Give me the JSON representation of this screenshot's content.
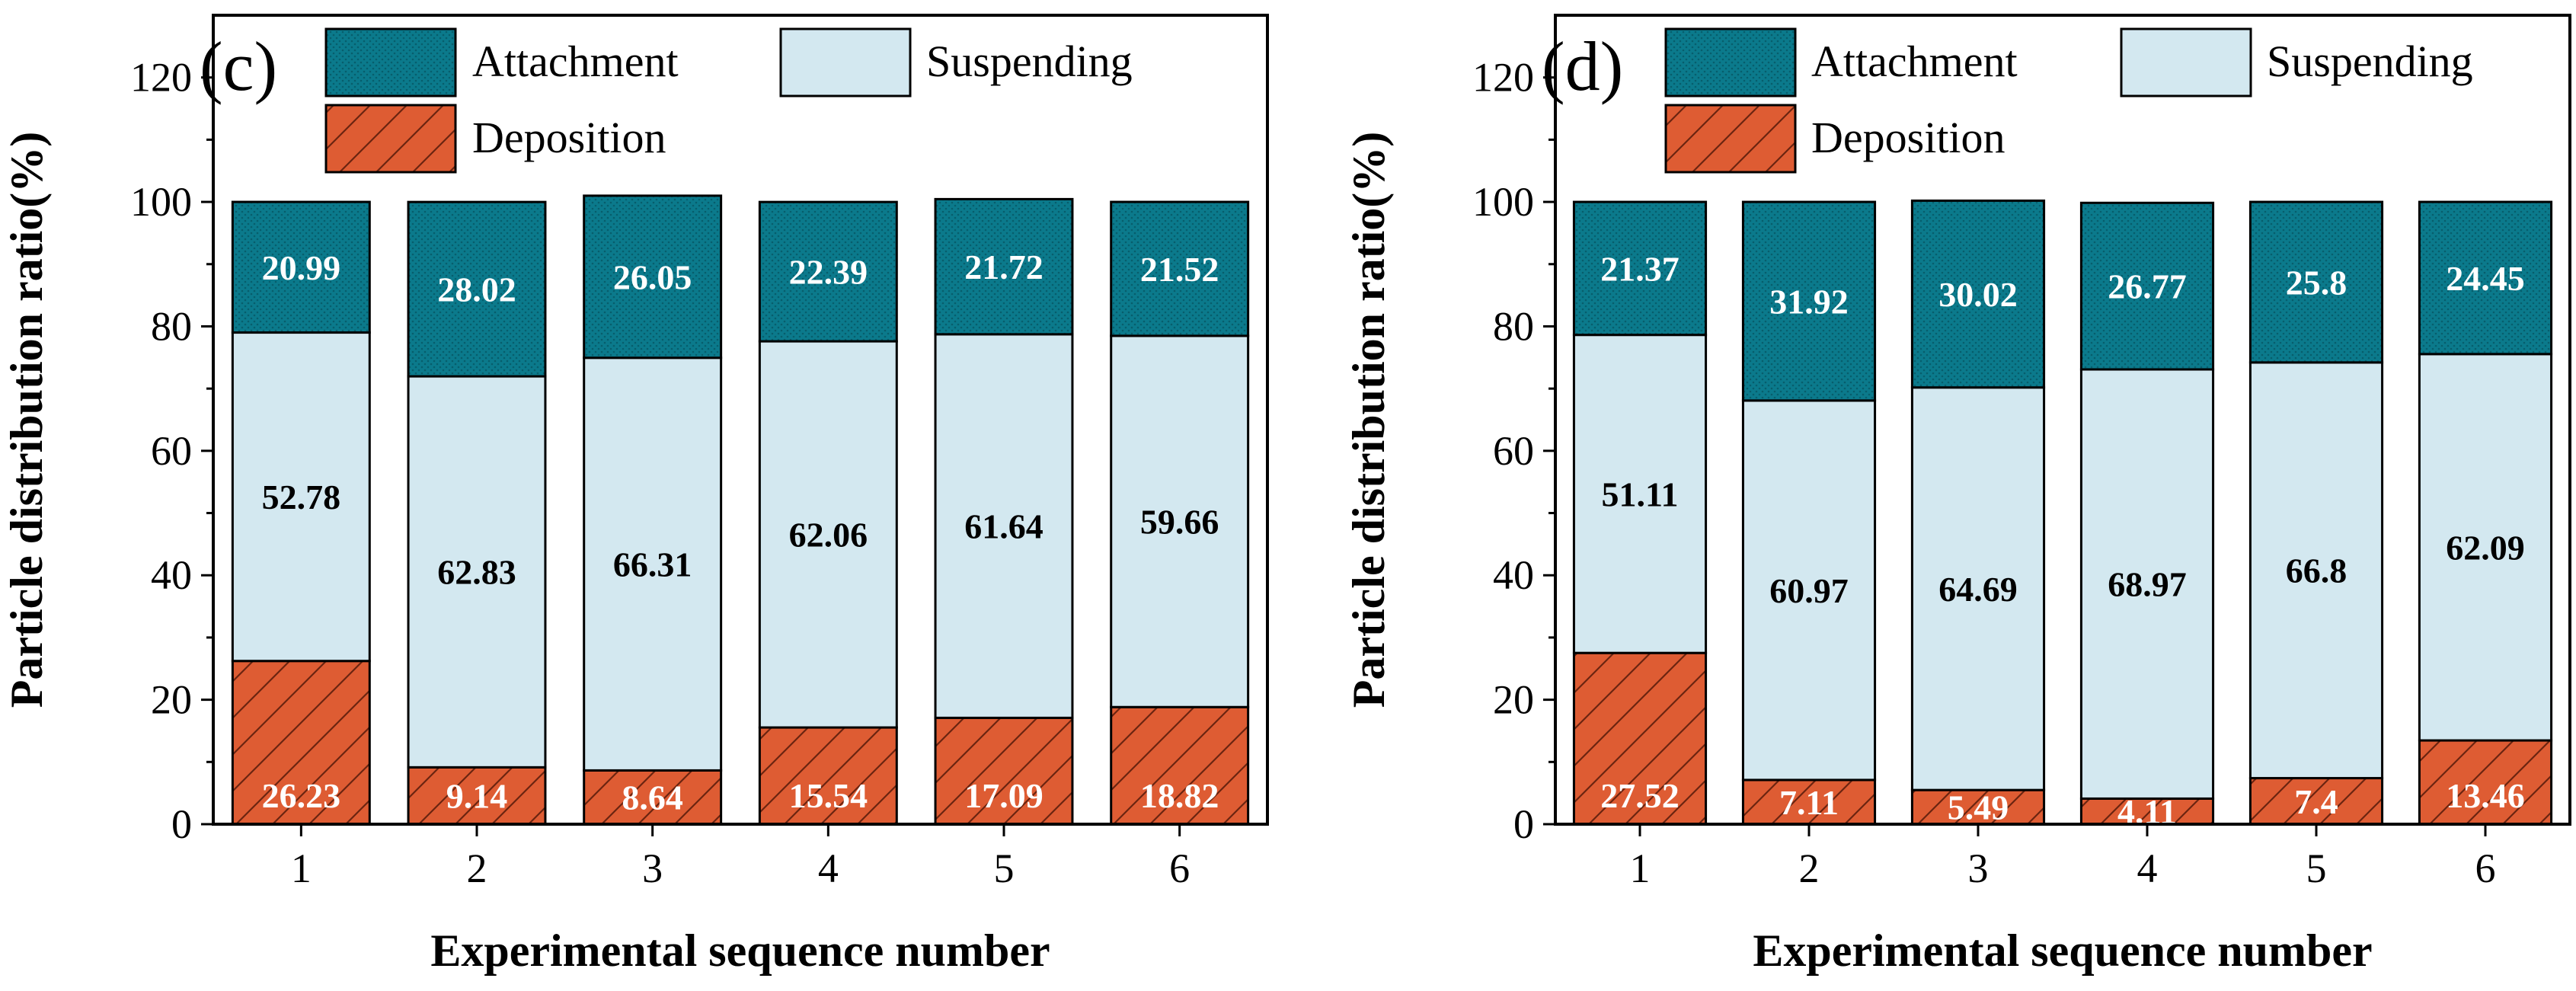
{
  "colors": {
    "attachment": "#0b7a8c",
    "suspending": "#d3e8f0",
    "deposition": "#de5c33",
    "axis": "#000000",
    "label_light": "#ffffff",
    "label_dark": "#000000"
  },
  "chart_data": [
    {
      "type": "bar",
      "stacked": true,
      "panel_label": "(c)",
      "title": "",
      "xlabel": "Experimental sequence number",
      "ylabel": "Particle distribution ratio(%)",
      "ylim": [
        0,
        130
      ],
      "yticks": [
        0,
        20,
        40,
        60,
        80,
        100,
        120
      ],
      "categories": [
        "1",
        "2",
        "3",
        "4",
        "5",
        "6"
      ],
      "legend": [
        {
          "name": "Attachment",
          "key": "attachment"
        },
        {
          "name": "Suspending",
          "key": "suspending"
        },
        {
          "name": "Deposition",
          "key": "deposition"
        }
      ],
      "series": [
        {
          "name": "Deposition",
          "key": "deposition",
          "values": [
            26.23,
            9.14,
            8.64,
            15.54,
            17.09,
            18.82
          ],
          "labels": [
            "26.23",
            "9.14",
            "8.64",
            "15.54",
            "17.09",
            "18.82"
          ]
        },
        {
          "name": "Suspending",
          "key": "suspending",
          "values": [
            52.78,
            62.83,
            66.31,
            62.06,
            61.64,
            59.66
          ],
          "labels": [
            "52.78",
            "62.83",
            "66.31",
            "62.06",
            "61.64",
            "59.66"
          ]
        },
        {
          "name": "Attachment",
          "key": "attachment",
          "values": [
            20.99,
            28.02,
            26.05,
            22.39,
            21.72,
            21.52
          ],
          "labels": [
            "20.99",
            "28.02",
            "26.05",
            "22.39",
            "21.72",
            "21.52"
          ]
        }
      ]
    },
    {
      "type": "bar",
      "stacked": true,
      "panel_label": "(d)",
      "title": "",
      "xlabel": "Experimental sequence number",
      "ylabel": "Particle distribution ratio(%)",
      "ylim": [
        0,
        130
      ],
      "yticks": [
        0,
        20,
        40,
        60,
        80,
        100,
        120
      ],
      "categories": [
        "1",
        "2",
        "3",
        "4",
        "5",
        "6"
      ],
      "legend": [
        {
          "name": "Attachment",
          "key": "attachment"
        },
        {
          "name": "Suspending",
          "key": "suspending"
        },
        {
          "name": "Deposition",
          "key": "deposition"
        }
      ],
      "series": [
        {
          "name": "Deposition",
          "key": "deposition",
          "values": [
            27.52,
            7.11,
            5.49,
            4.11,
            7.4,
            13.46
          ],
          "labels": [
            "27.52",
            "7.11",
            "5.49",
            "4.11",
            "7.4",
            "13.46"
          ]
        },
        {
          "name": "Suspending",
          "key": "suspending",
          "values": [
            51.11,
            60.97,
            64.69,
            68.97,
            66.8,
            62.09
          ],
          "labels": [
            "51.11",
            "60.97",
            "64.69",
            "68.97",
            "66.8",
            "62.09"
          ]
        },
        {
          "name": "Attachment",
          "key": "attachment",
          "values": [
            21.37,
            31.92,
            30.02,
            26.77,
            25.8,
            24.45
          ],
          "labels": [
            "21.37",
            "31.92",
            "30.02",
            "26.77",
            "25.8",
            "24.45"
          ]
        }
      ]
    }
  ]
}
